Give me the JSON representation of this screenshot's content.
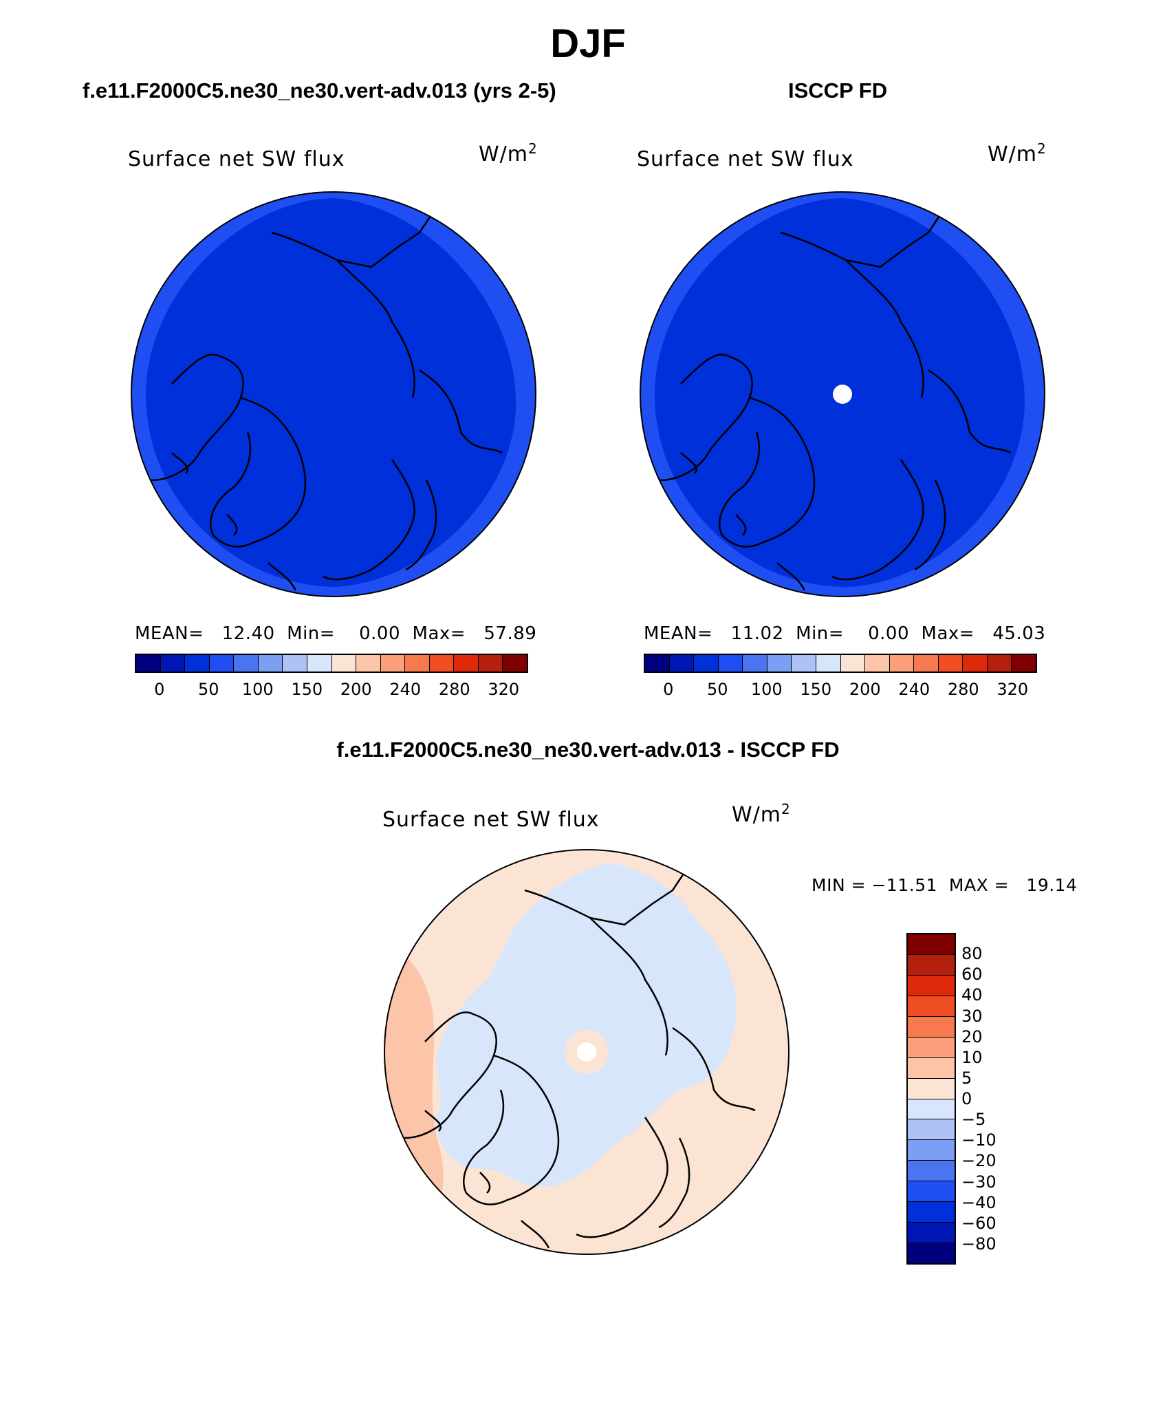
{
  "title": "DJF",
  "panels": [
    {
      "header": "f.e11.F2000C5.ne30_ne30.vert-adv.013 (yrs 2-5)",
      "variable": "Surface net SW flux",
      "units": "W/m",
      "units_exp": "2",
      "stats": "MEAN=   12.40  Min=    0.00  Max=   57.89"
    },
    {
      "header": "ISCCP FD",
      "variable": "Surface net SW flux",
      "units": "W/m",
      "units_exp": "2",
      "stats": "MEAN=   11.02  Min=    0.00  Max=   45.03"
    }
  ],
  "colorbar": {
    "colors": [
      "#00007f",
      "#0017b3",
      "#0030d9",
      "#1f4ff2",
      "#4a74f0",
      "#7b9ff2",
      "#aec3f5",
      "#d8e6fb",
      "#fce4d4",
      "#fcc4a8",
      "#fca07c",
      "#f77a4f",
      "#f04d22",
      "#de2a0a",
      "#b3200e",
      "#7f0000"
    ],
    "tick_labels": [
      "0",
      "50",
      "100",
      "150",
      "200",
      "240",
      "280",
      "320"
    ]
  },
  "diff": {
    "header": "f.e11.F2000C5.ne30_ne30.vert-adv.013 - ISCCP FD",
    "variable": "Surface net SW flux",
    "units": "W/m",
    "units_exp": "2",
    "minmax": "MIN = −11.51  MAX =   19.14",
    "colors_top_to_bottom": [
      "#7f0000",
      "#b3200e",
      "#de2a0a",
      "#f04d22",
      "#f77a4f",
      "#fca07c",
      "#fcc4a8",
      "#fce4d4",
      "#d8e6fb",
      "#aec3f5",
      "#7b9ff2",
      "#4a74f0",
      "#1f4ff2",
      "#0030d9",
      "#0017b3",
      "#00007f"
    ],
    "tick_labels": [
      "80",
      "60",
      "40",
      "30",
      "20",
      "10",
      "5",
      "0",
      "−5",
      "−10",
      "−20",
      "−30",
      "−40",
      "−60",
      "−80"
    ]
  },
  "chart_data": [
    {
      "type": "heatmap",
      "title": "Surface net SW flux",
      "subtitle": "f.e11.F2000C5.ne30_ne30.vert-adv.013 (yrs 2-5)",
      "projection": "north polar stereographic",
      "units": "W/m2",
      "mean": 12.4,
      "min": 0.0,
      "max": 57.89,
      "levels": [
        0,
        25,
        50,
        75,
        100,
        125,
        150,
        175,
        200,
        220,
        240,
        260,
        280,
        300,
        320
      ]
    },
    {
      "type": "heatmap",
      "title": "Surface net SW flux",
      "subtitle": "ISCCP FD",
      "projection": "north polar stereographic",
      "units": "W/m2",
      "mean": 11.02,
      "min": 0.0,
      "max": 45.03,
      "levels": [
        0,
        25,
        50,
        75,
        100,
        125,
        150,
        175,
        200,
        220,
        240,
        260,
        280,
        300,
        320
      ]
    },
    {
      "type": "heatmap",
      "title": "Surface net SW flux",
      "subtitle": "f.e11.F2000C5.ne30_ne30.vert-adv.013 - ISCCP FD",
      "projection": "north polar stereographic",
      "units": "W/m2",
      "min": -11.51,
      "max": 19.14,
      "levels": [
        -80,
        -60,
        -40,
        -30,
        -20,
        -10,
        -5,
        0,
        5,
        10,
        20,
        30,
        40,
        60,
        80
      ]
    }
  ]
}
